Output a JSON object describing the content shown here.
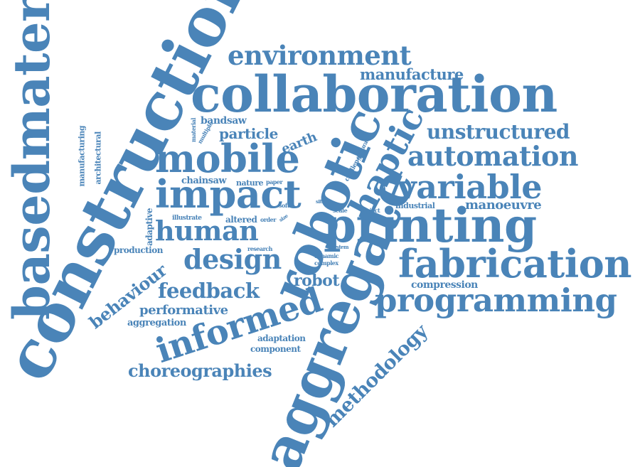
{
  "word_cloud": {
    "color": "#4a84b8",
    "words": [
      "basedmaterials",
      "construction",
      "collaboration",
      "environment",
      "manufacture",
      "robotic",
      "printing",
      "aggregate",
      "fabrication",
      "programming",
      "mobile",
      "impact",
      "human",
      "design",
      "informed",
      "feedback",
      "choreographies",
      "methodology",
      "automation",
      "variable",
      "unstructured",
      "haptic",
      "behaviour",
      "performative",
      "aggregation",
      "adaptation",
      "component",
      "production",
      "adaptive",
      "robot",
      "compression",
      "manoeuvre",
      "industrial",
      "project",
      "scale",
      "site",
      "soft",
      "dynamic",
      "complex",
      "system",
      "research",
      "altered",
      "order",
      "size",
      "illustrate",
      "nature",
      "paper",
      "chainsaw",
      "earth",
      "particle",
      "bandsaw",
      "multiple",
      "material",
      "accuracy",
      "challenge",
      "manufacturing",
      "architectural"
    ]
  }
}
